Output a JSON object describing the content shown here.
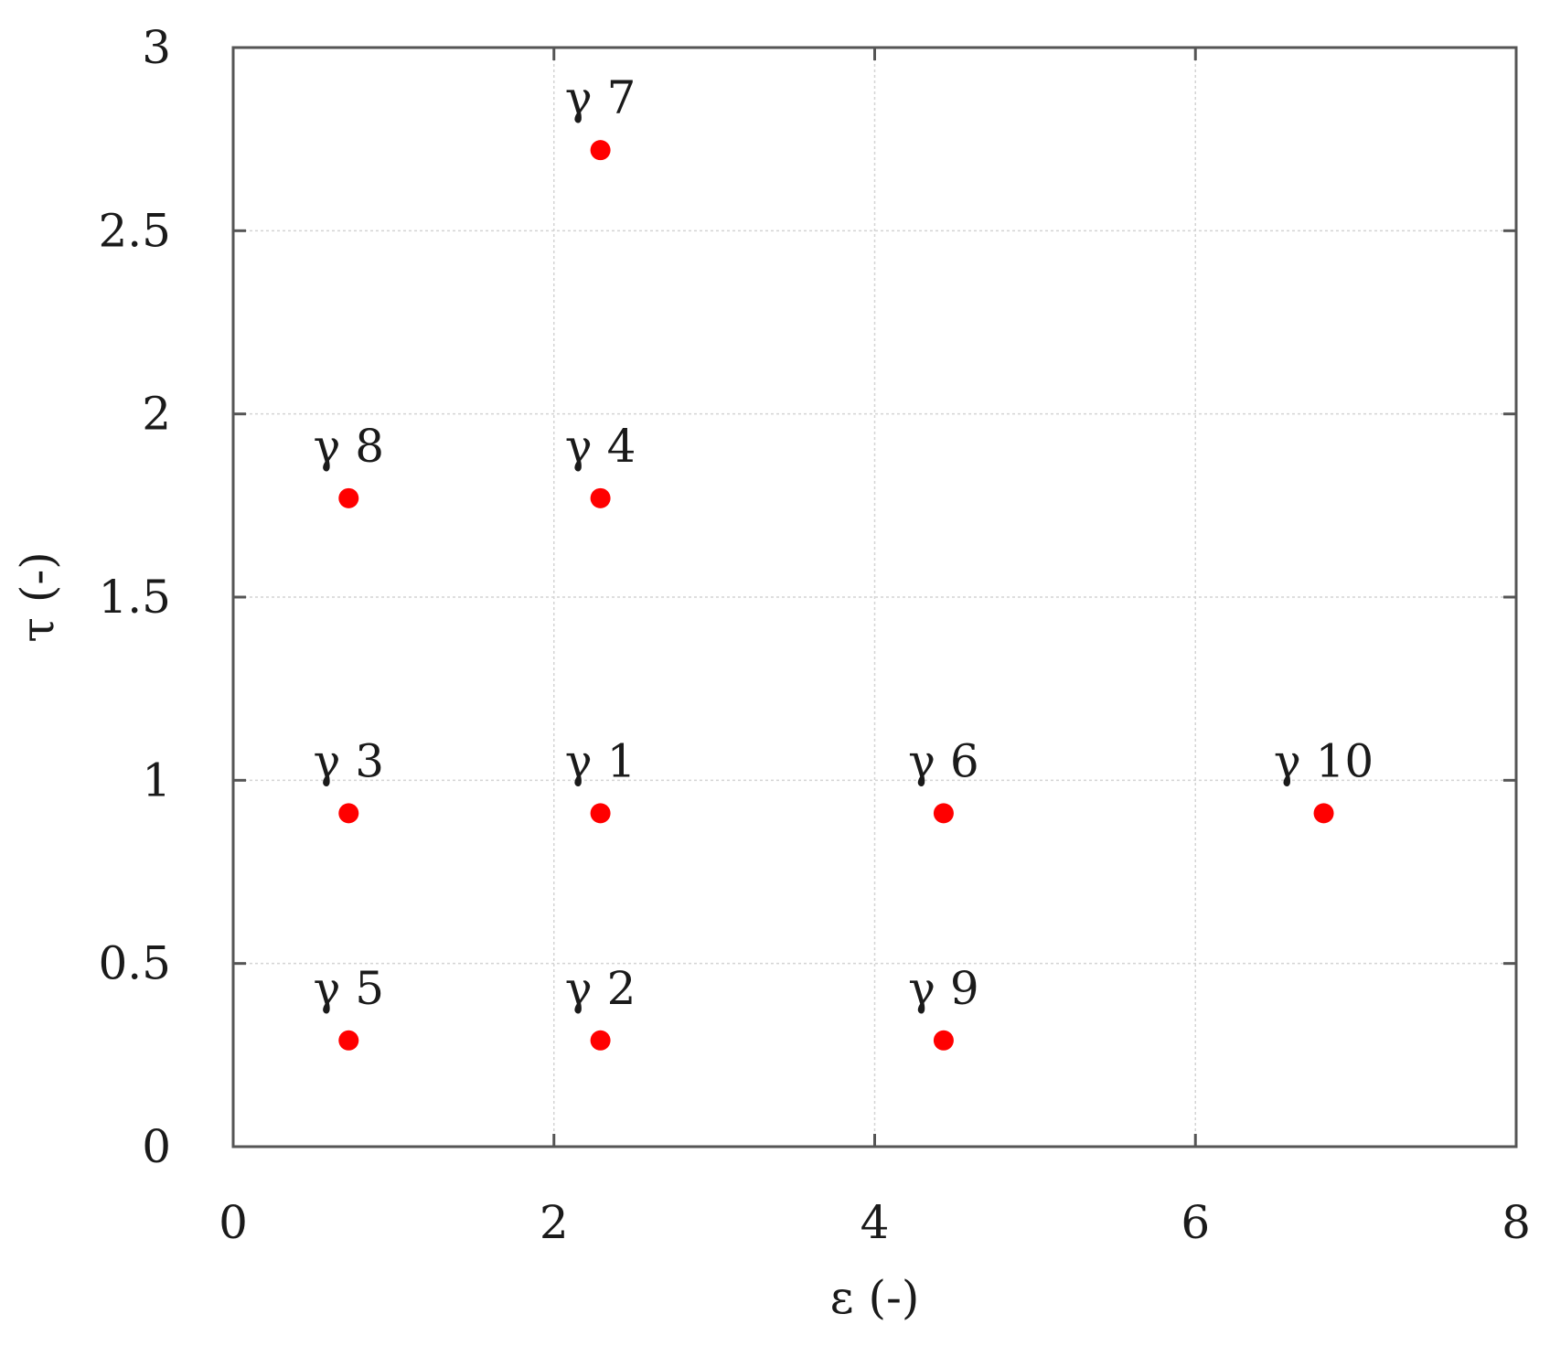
{
  "chart_data": {
    "type": "scatter",
    "title": "",
    "xlabel": "ε (-)",
    "ylabel": "τ (-)",
    "xlim": [
      0,
      8
    ],
    "ylim": [
      0,
      3
    ],
    "xticks": [
      0,
      2,
      4,
      6,
      8
    ],
    "xtick_labels": [
      "0",
      "2",
      "4",
      "6",
      "8"
    ],
    "yticks": [
      0,
      0.5,
      1,
      1.5,
      2,
      2.5,
      3
    ],
    "ytick_labels": [
      "0",
      "0.5",
      "1",
      "1.5",
      "2",
      "2.5",
      "3"
    ],
    "grid": true,
    "marker_color": "#ff0000",
    "points": [
      {
        "label": "γ 1",
        "x": 2.29,
        "y": 0.91
      },
      {
        "label": "γ 2",
        "x": 2.29,
        "y": 0.29
      },
      {
        "label": "γ 3",
        "x": 0.72,
        "y": 0.91
      },
      {
        "label": "γ 4",
        "x": 2.29,
        "y": 1.77
      },
      {
        "label": "γ 5",
        "x": 0.72,
        "y": 0.29
      },
      {
        "label": "γ 6",
        "x": 4.43,
        "y": 0.91
      },
      {
        "label": "γ 7",
        "x": 2.29,
        "y": 2.72
      },
      {
        "label": "γ 8",
        "x": 0.72,
        "y": 1.77
      },
      {
        "label": "γ 9",
        "x": 4.43,
        "y": 0.29
      },
      {
        "label": "γ 10",
        "x": 6.8,
        "y": 0.91
      }
    ]
  }
}
